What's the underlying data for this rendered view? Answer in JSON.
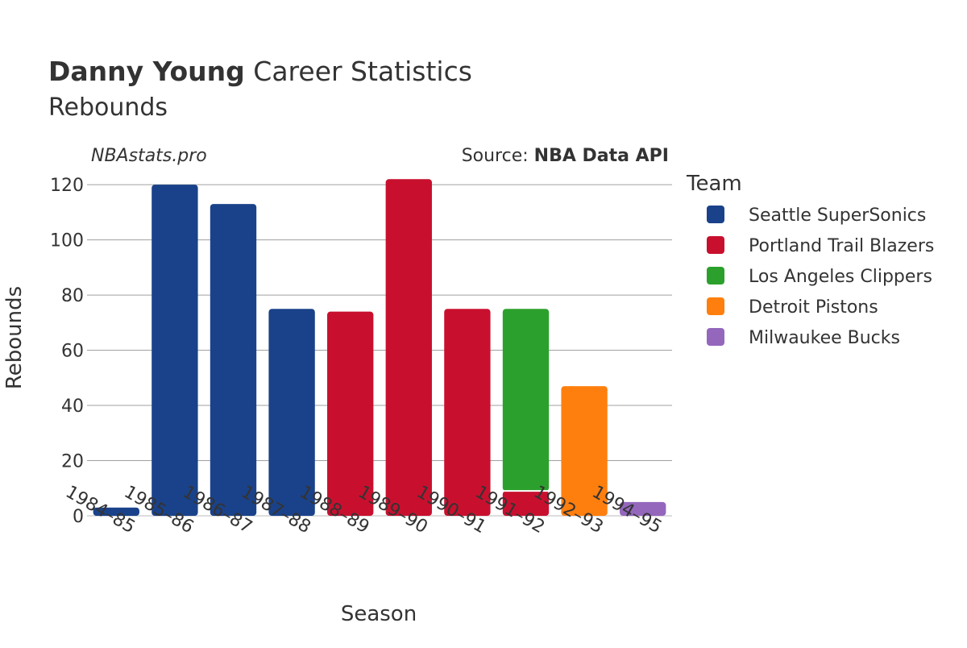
{
  "chart_data": {
    "type": "bar",
    "stacked": true,
    "title_bold": "Danny Young",
    "title_rest": " Career Statistics",
    "subtitle": "Rebounds",
    "watermark": "NBAstats.pro",
    "source_prefix": "Source: ",
    "source_bold": "NBA Data API",
    "xlabel": "Season",
    "ylabel": "Rebounds",
    "ylim": [
      0,
      125
    ],
    "yticks": [
      0,
      20,
      40,
      60,
      80,
      100,
      120
    ],
    "grid": true,
    "legend_title": "Team",
    "legend_position": "right",
    "categories": [
      "1984–85",
      "1985–86",
      "1986–87",
      "1987–88",
      "1988–89",
      "1989–90",
      "1990–91",
      "1991–92",
      "1992–93",
      "1994–95"
    ],
    "series": [
      {
        "name": "Seattle SuperSonics",
        "color": "#1a428a",
        "values": [
          3,
          120,
          113,
          75,
          0,
          0,
          0,
          0,
          0,
          0
        ]
      },
      {
        "name": "Portland Trail Blazers",
        "color": "#c8102e",
        "values": [
          0,
          0,
          0,
          0,
          74,
          122,
          75,
          9,
          0,
          0
        ]
      },
      {
        "name": "Los Angeles Clippers",
        "color": "#2ca02c",
        "values": [
          0,
          0,
          0,
          0,
          0,
          0,
          0,
          66,
          0,
          0
        ]
      },
      {
        "name": "Detroit Pistons",
        "color": "#ff7f0e",
        "values": [
          0,
          0,
          0,
          0,
          0,
          0,
          0,
          0,
          47,
          0
        ]
      },
      {
        "name": "Milwaukee Bucks",
        "color": "#9467bd",
        "values": [
          0,
          0,
          0,
          0,
          0,
          0,
          0,
          0,
          0,
          5
        ]
      }
    ]
  }
}
